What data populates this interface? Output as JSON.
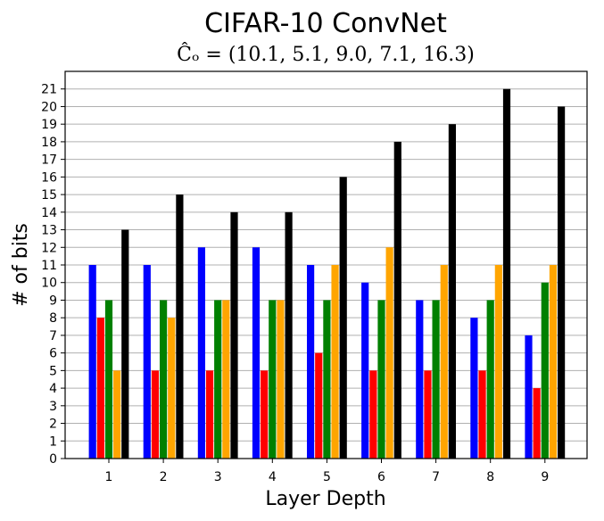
{
  "chart_data": {
    "type": "bar",
    "title": "CIFAR-10 ConvNet",
    "subtitle": "Ĉₒ = (10.1, 5.1, 9.0, 7.1, 16.3)",
    "xlabel": "Layer Depth",
    "ylabel": "# of bits",
    "categories": [
      "1",
      "2",
      "3",
      "4",
      "5",
      "6",
      "7",
      "8",
      "9"
    ],
    "ylim": [
      0,
      22
    ],
    "yticks": [
      0,
      1,
      2,
      3,
      4,
      5,
      6,
      7,
      8,
      9,
      10,
      11,
      12,
      13,
      14,
      15,
      16,
      17,
      18,
      19,
      20,
      21
    ],
    "grid": "horizontal",
    "legend": "none",
    "series": [
      {
        "color": "#0000ff",
        "values": [
          11,
          11,
          12,
          12,
          11,
          10,
          9,
          8,
          7
        ]
      },
      {
        "color": "#ff0000",
        "values": [
          8,
          5,
          5,
          5,
          6,
          5,
          5,
          5,
          4
        ]
      },
      {
        "color": "#008000",
        "values": [
          9,
          9,
          9,
          9,
          9,
          9,
          9,
          9,
          10
        ]
      },
      {
        "color": "#ffa500",
        "values": [
          5,
          8,
          9,
          9,
          11,
          12,
          11,
          11,
          11
        ]
      },
      {
        "color": "#000000",
        "values": [
          13,
          15,
          14,
          14,
          16,
          18,
          19,
          21,
          20
        ]
      }
    ]
  }
}
